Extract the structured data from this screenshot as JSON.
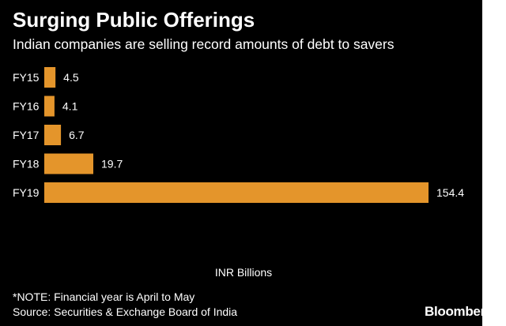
{
  "chart_data": {
    "type": "bar",
    "orientation": "horizontal",
    "title": "Surging Public Offerings",
    "subtitle": "Indian companies are selling record amounts of debt to savers",
    "categories": [
      "FY15",
      "FY16",
      "FY17",
      "FY18",
      "FY19"
    ],
    "values": [
      4.5,
      4.1,
      6.7,
      19.7,
      154.4
    ],
    "value_labels": [
      "4.5",
      "4.1",
      "6.7",
      "19.7",
      "154.4"
    ],
    "xlabel": "INR Billions",
    "ylabel": "",
    "xlim": [
      0,
      154.4
    ],
    "grid": false,
    "legend": "none"
  },
  "footer": {
    "note": "*NOTE: Financial year is April to May",
    "source": "Source: Securities & Exchange Board of India",
    "brand": "Bloomberg"
  },
  "colors": {
    "background": "#000000",
    "bar": "#e4952b",
    "text": "#ffffff"
  }
}
